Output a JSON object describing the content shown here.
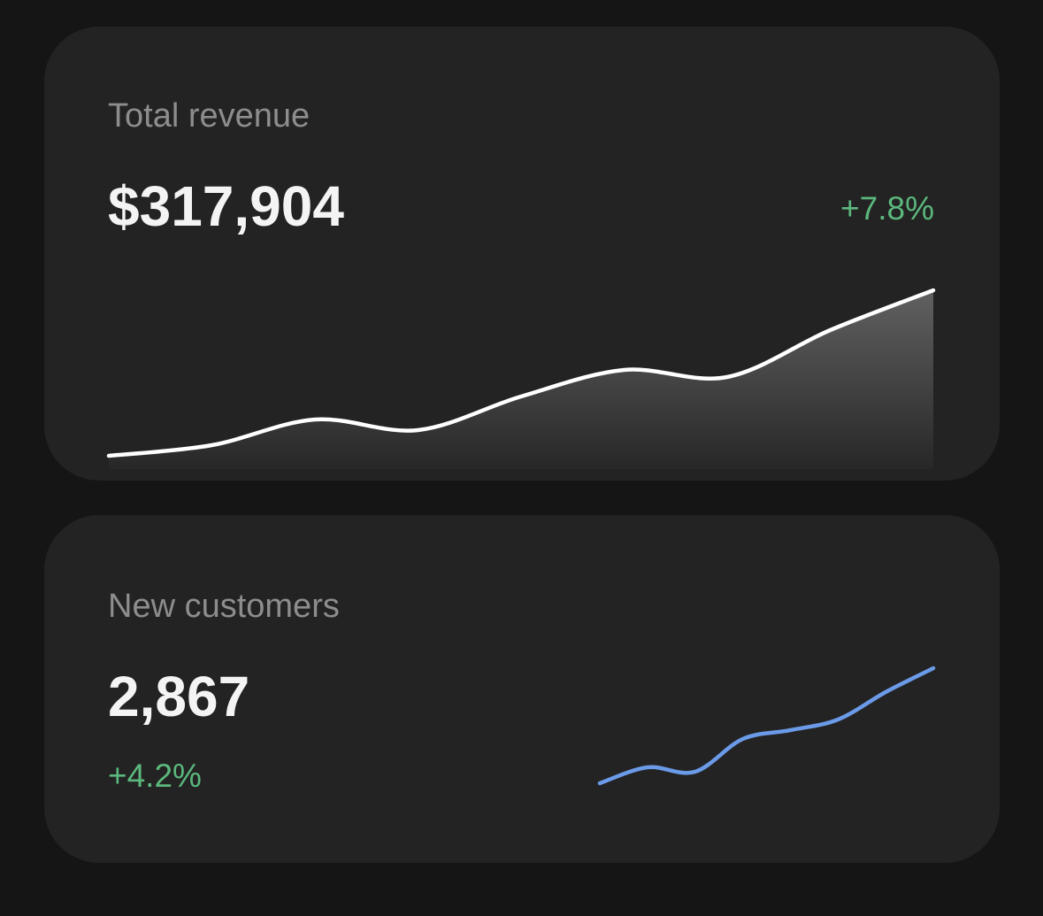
{
  "cards": [
    {
      "title": "Total revenue",
      "value": "$317,904",
      "change": "+7.8%",
      "change_color": "#5bb87c",
      "sparkline": {
        "type": "area",
        "color": "#ffffff",
        "values": [
          5,
          17,
          46,
          34,
          72,
          102,
          94,
          147,
          192
        ]
      }
    },
    {
      "title": "New customers",
      "value": "2,867",
      "change": "+4.2%",
      "change_color": "#5bb87c",
      "sparkline": {
        "type": "line",
        "color": "#6b9be8",
        "values": [
          15,
          33,
          28,
          65,
          75,
          87,
          118,
          145
        ]
      }
    }
  ]
}
